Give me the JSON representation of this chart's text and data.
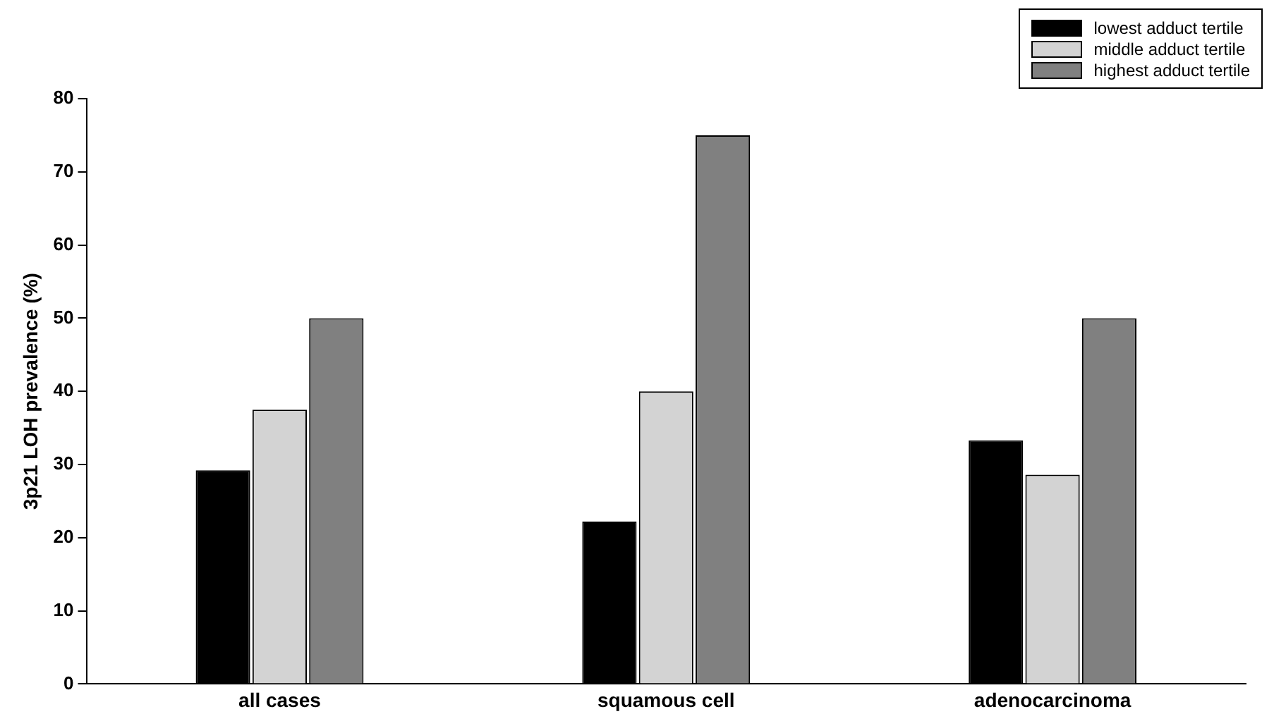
{
  "chart_data": {
    "type": "bar",
    "ylabel": "3p21 LOH prevalence (%)",
    "categories": [
      "all cases",
      "squamous cell",
      "adenocarcinoma"
    ],
    "series": [
      {
        "name": "lowest adduct tertile",
        "color": "#000000",
        "values": [
          29.2,
          22.2,
          33.3
        ]
      },
      {
        "name": "middle adduct tertile",
        "color": "#d3d3d3",
        "values": [
          37.5,
          40,
          28.6
        ]
      },
      {
        "name": "highest adduct tertile",
        "color": "#808080",
        "values": [
          50,
          75,
          50
        ]
      }
    ],
    "ylim": [
      0,
      80
    ],
    "yticks": [
      0,
      10,
      20,
      30,
      40,
      50,
      60,
      70,
      80
    ],
    "grid": false,
    "legend": "top right"
  }
}
